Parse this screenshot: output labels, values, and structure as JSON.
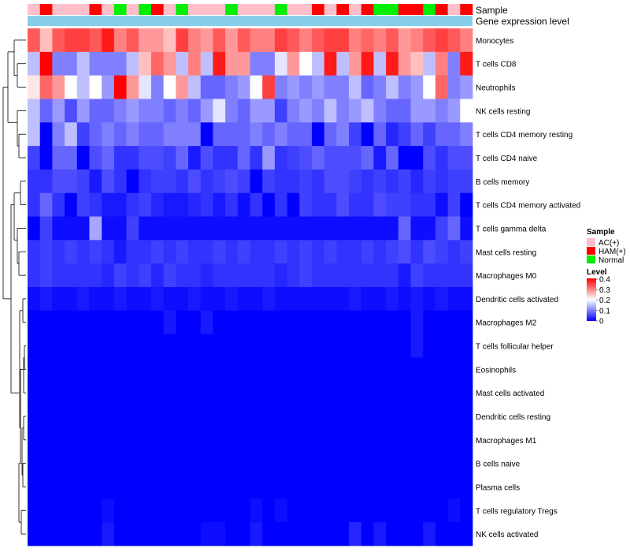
{
  "chart_data": {
    "type": "heatmap",
    "annotations": {
      "sample_label": "Sample",
      "expression_label": "Gene expression level",
      "sample_track": [
        "AC(+)",
        "HAM(+)",
        "AC(+)",
        "AC(+)",
        "AC(+)",
        "HAM(+)",
        "AC(+)",
        "Normal",
        "AC(+)",
        "Normal",
        "HAM(+)",
        "AC(+)",
        "Normal",
        "AC(+)",
        "AC(+)",
        "AC(+)",
        "Normal",
        "AC(+)",
        "AC(+)",
        "AC(+)",
        "Normal",
        "AC(+)",
        "AC(+)",
        "HAM(+)",
        "AC(+)",
        "HAM(+)",
        "AC(+)",
        "HAM(+)",
        "Normal",
        "Normal",
        "HAM(+)",
        "HAM(+)",
        "Normal",
        "HAM(+)",
        "AC(+)",
        "HAM(+)"
      ]
    },
    "rows": [
      "Monocytes",
      "T cells CD8",
      "Neutrophils",
      "NK cells resting",
      "T cells CD4 memory resting",
      "T cells CD4 naive",
      "B cells memory",
      "T cells CD4 memory activated",
      "T cells gamma delta",
      "Mast cells resting",
      "Macrophages M0",
      "Dendritic cells activated",
      "Macrophages M2",
      "T cells follicular helper",
      "Eosinophils",
      "Mast cells activated",
      "Dendritic cells resting",
      "Macrophages M1",
      "B cells naive",
      "Plasma cells",
      "T cells regulatory  Tregs",
      "NK cells activated"
    ],
    "values": [
      [
        0.33,
        0.25,
        0.33,
        0.35,
        0.35,
        0.33,
        0.38,
        0.3,
        0.33,
        0.28,
        0.28,
        0.25,
        0.35,
        0.3,
        0.28,
        0.33,
        0.28,
        0.33,
        0.3,
        0.3,
        0.35,
        0.33,
        0.3,
        0.33,
        0.35,
        0.35,
        0.3,
        0.32,
        0.3,
        0.33,
        0.28,
        0.3,
        0.33,
        0.35,
        0.33,
        0.3
      ],
      [
        0.15,
        0.4,
        0.1,
        0.1,
        0.15,
        0.1,
        0.1,
        0.1,
        0.15,
        0.25,
        0.32,
        0.28,
        0.15,
        0.3,
        0.15,
        0.38,
        0.28,
        0.28,
        0.1,
        0.1,
        0.18,
        0.28,
        0.2,
        0.15,
        0.38,
        0.15,
        0.28,
        0.38,
        0.15,
        0.38,
        0.28,
        0.25,
        0.15,
        0.3,
        0.1,
        0.38
      ],
      [
        0.22,
        0.32,
        0.28,
        0.2,
        0.15,
        0.2,
        0.12,
        0.4,
        0.28,
        0.18,
        0.1,
        0.2,
        0.28,
        0.15,
        0.08,
        0.08,
        0.1,
        0.12,
        0.2,
        0.35,
        0.1,
        0.12,
        0.1,
        0.12,
        0.1,
        0.1,
        0.15,
        0.08,
        0.1,
        0.15,
        0.1,
        0.12,
        0.2,
        0.32,
        0.1,
        0.12
      ],
      [
        0.15,
        0.08,
        0.12,
        0.06,
        0.12,
        0.08,
        0.08,
        0.1,
        0.12,
        0.1,
        0.1,
        0.08,
        0.1,
        0.08,
        0.12,
        0.18,
        0.1,
        0.08,
        0.12,
        0.12,
        0.05,
        0.1,
        0.12,
        0.1,
        0.15,
        0.1,
        0.12,
        0.15,
        0.1,
        0.08,
        0.08,
        0.12,
        0.12,
        0.1,
        0.12,
        0.2
      ],
      [
        0.15,
        0.0,
        0.1,
        0.15,
        0.05,
        0.08,
        0.1,
        0.08,
        0.1,
        0.08,
        0.08,
        0.1,
        0.1,
        0.1,
        0.0,
        0.08,
        0.08,
        0.08,
        0.1,
        0.08,
        0.1,
        0.08,
        0.08,
        0.0,
        0.08,
        0.1,
        0.05,
        0.0,
        0.08,
        0.03,
        0.05,
        0.08,
        0.05,
        0.08,
        0.08,
        0.1
      ],
      [
        0.05,
        0.0,
        0.08,
        0.08,
        0.0,
        0.06,
        0.08,
        0.04,
        0.04,
        0.06,
        0.06,
        0.05,
        0.08,
        0.02,
        0.06,
        0.04,
        0.04,
        0.08,
        0.04,
        0.12,
        0.04,
        0.05,
        0.06,
        0.08,
        0.06,
        0.06,
        0.06,
        0.08,
        0.02,
        0.08,
        0.0,
        0.0,
        0.06,
        0.04,
        0.06,
        0.06
      ],
      [
        0.04,
        0.04,
        0.06,
        0.06,
        0.05,
        0.02,
        0.06,
        0.04,
        0.0,
        0.04,
        0.05,
        0.05,
        0.04,
        0.06,
        0.04,
        0.05,
        0.06,
        0.05,
        0.0,
        0.05,
        0.04,
        0.04,
        0.05,
        0.04,
        0.06,
        0.06,
        0.05,
        0.04,
        0.05,
        0.04,
        0.05,
        0.03,
        0.05,
        0.04,
        0.05,
        0.05
      ],
      [
        0.04,
        0.08,
        0.04,
        0.0,
        0.05,
        0.04,
        0.02,
        0.02,
        0.04,
        0.05,
        0.03,
        0.02,
        0.02,
        0.03,
        0.04,
        0.02,
        0.04,
        0.01,
        0.04,
        0.0,
        0.04,
        0.0,
        0.05,
        0.04,
        0.04,
        0.06,
        0.04,
        0.04,
        0.06,
        0.05,
        0.05,
        0.04,
        0.04,
        0.01,
        0.05,
        0.0
      ],
      [
        0.0,
        0.05,
        0.01,
        0.01,
        0.01,
        0.13,
        0.01,
        0.01,
        0.05,
        0.01,
        0.01,
        0.01,
        0.01,
        0.01,
        0.01,
        0.01,
        0.01,
        0.01,
        0.01,
        0.01,
        0.01,
        0.01,
        0.01,
        0.01,
        0.01,
        0.01,
        0.01,
        0.01,
        0.01,
        0.01,
        0.08,
        0.01,
        0.01,
        0.05,
        0.08,
        0.01
      ],
      [
        0.04,
        0.05,
        0.04,
        0.05,
        0.04,
        0.05,
        0.04,
        0.02,
        0.04,
        0.04,
        0.05,
        0.04,
        0.05,
        0.04,
        0.04,
        0.05,
        0.04,
        0.05,
        0.04,
        0.04,
        0.05,
        0.04,
        0.05,
        0.04,
        0.05,
        0.04,
        0.04,
        0.05,
        0.04,
        0.05,
        0.06,
        0.04,
        0.06,
        0.05,
        0.04,
        0.05
      ],
      [
        0.04,
        0.05,
        0.04,
        0.04,
        0.04,
        0.04,
        0.03,
        0.05,
        0.04,
        0.05,
        0.03,
        0.05,
        0.04,
        0.04,
        0.03,
        0.04,
        0.04,
        0.04,
        0.04,
        0.04,
        0.03,
        0.04,
        0.05,
        0.04,
        0.04,
        0.04,
        0.04,
        0.04,
        0.04,
        0.04,
        0.02,
        0.05,
        0.04,
        0.04,
        0.04,
        0.04
      ],
      [
        0.01,
        0.02,
        0.01,
        0.01,
        0.02,
        0.01,
        0.01,
        0.02,
        0.01,
        0.01,
        0.02,
        0.01,
        0.01,
        0.02,
        0.01,
        0.01,
        0.02,
        0.01,
        0.01,
        0.02,
        0.01,
        0.01,
        0.01,
        0.01,
        0.01,
        0.01,
        0.02,
        0.01,
        0.01,
        0.02,
        0.01,
        0.02,
        0.01,
        0.02,
        0.01,
        0.01
      ],
      [
        0.0,
        0.0,
        0.0,
        0.0,
        0.0,
        0.0,
        0.0,
        0.0,
        0.0,
        0.0,
        0.0,
        0.02,
        0.0,
        0.0,
        0.02,
        0.0,
        0.0,
        0.0,
        0.0,
        0.0,
        0.0,
        0.0,
        0.0,
        0.0,
        0.0,
        0.0,
        0.0,
        0.0,
        0.0,
        0.0,
        0.0,
        0.02,
        0.0,
        0.0,
        0.0,
        0.0
      ],
      [
        0.0,
        0.0,
        0.0,
        0.0,
        0.0,
        0.0,
        0.0,
        0.0,
        0.0,
        0.0,
        0.0,
        0.0,
        0.0,
        0.0,
        0.0,
        0.0,
        0.0,
        0.0,
        0.0,
        0.0,
        0.0,
        0.0,
        0.0,
        0.0,
        0.0,
        0.0,
        0.0,
        0.0,
        0.0,
        0.0,
        0.0,
        0.02,
        0.0,
        0.0,
        0.0,
        0.0
      ],
      [
        0.0,
        0.0,
        0.0,
        0.0,
        0.0,
        0.0,
        0.0,
        0.0,
        0.0,
        0.0,
        0.0,
        0.0,
        0.0,
        0.0,
        0.0,
        0.0,
        0.0,
        0.0,
        0.0,
        0.0,
        0.0,
        0.0,
        0.0,
        0.0,
        0.0,
        0.0,
        0.0,
        0.0,
        0.0,
        0.0,
        0.0,
        0.0,
        0.0,
        0.0,
        0.0,
        0.0
      ],
      [
        0.0,
        0.0,
        0.0,
        0.0,
        0.0,
        0.0,
        0.0,
        0.0,
        0.0,
        0.0,
        0.0,
        0.0,
        0.0,
        0.0,
        0.0,
        0.0,
        0.0,
        0.0,
        0.0,
        0.0,
        0.0,
        0.0,
        0.0,
        0.0,
        0.0,
        0.0,
        0.0,
        0.0,
        0.0,
        0.0,
        0.0,
        0.0,
        0.0,
        0.0,
        0.0,
        0.0
      ],
      [
        0.0,
        0.0,
        0.0,
        0.0,
        0.0,
        0.0,
        0.0,
        0.0,
        0.0,
        0.0,
        0.0,
        0.0,
        0.0,
        0.0,
        0.0,
        0.0,
        0.0,
        0.0,
        0.0,
        0.0,
        0.0,
        0.0,
        0.0,
        0.0,
        0.0,
        0.0,
        0.0,
        0.0,
        0.0,
        0.0,
        0.0,
        0.0,
        0.0,
        0.0,
        0.0,
        0.0
      ],
      [
        0.0,
        0.0,
        0.0,
        0.0,
        0.0,
        0.0,
        0.0,
        0.0,
        0.0,
        0.0,
        0.0,
        0.0,
        0.0,
        0.0,
        0.0,
        0.0,
        0.0,
        0.0,
        0.0,
        0.0,
        0.0,
        0.0,
        0.0,
        0.0,
        0.0,
        0.0,
        0.0,
        0.0,
        0.0,
        0.0,
        0.0,
        0.0,
        0.0,
        0.0,
        0.0,
        0.0
      ],
      [
        0.0,
        0.0,
        0.0,
        0.0,
        0.0,
        0.0,
        0.0,
        0.0,
        0.0,
        0.0,
        0.0,
        0.0,
        0.0,
        0.0,
        0.0,
        0.0,
        0.0,
        0.0,
        0.0,
        0.0,
        0.0,
        0.0,
        0.0,
        0.0,
        0.0,
        0.0,
        0.0,
        0.0,
        0.0,
        0.0,
        0.0,
        0.0,
        0.0,
        0.0,
        0.0,
        0.0
      ],
      [
        0.0,
        0.0,
        0.0,
        0.0,
        0.0,
        0.0,
        0.0,
        0.0,
        0.0,
        0.0,
        0.0,
        0.0,
        0.0,
        0.0,
        0.0,
        0.0,
        0.0,
        0.0,
        0.0,
        0.0,
        0.0,
        0.0,
        0.0,
        0.0,
        0.0,
        0.0,
        0.0,
        0.0,
        0.0,
        0.0,
        0.0,
        0.0,
        0.0,
        0.0,
        0.0,
        0.0
      ],
      [
        0.0,
        0.0,
        0.0,
        0.0,
        0.0,
        0.0,
        0.01,
        0.0,
        0.0,
        0.0,
        0.0,
        0.0,
        0.0,
        0.0,
        0.0,
        0.0,
        0.0,
        0.0,
        0.01,
        0.0,
        0.01,
        0.0,
        0.0,
        0.0,
        0.0,
        0.0,
        0.0,
        0.0,
        0.0,
        0.0,
        0.0,
        0.0,
        0.0,
        0.0,
        0.01,
        0.0
      ],
      [
        0.0,
        0.0,
        0.0,
        0.0,
        0.0,
        0.0,
        0.02,
        0.0,
        0.0,
        0.0,
        0.0,
        0.0,
        0.0,
        0.0,
        0.01,
        0.01,
        0.0,
        0.0,
        0.02,
        0.0,
        0.0,
        0.0,
        0.0,
        0.0,
        0.0,
        0.0,
        0.03,
        0.0,
        0.02,
        0.0,
        0.0,
        0.0,
        0.02,
        0.0,
        0.0,
        0.0
      ]
    ],
    "legend": {
      "sample_title": "Sample",
      "sample_entries": [
        {
          "name": "AC(+)",
          "color": "#FFC0CB"
        },
        {
          "name": "HAM(+)",
          "color": "#FF0000"
        },
        {
          "name": "Normal",
          "color": "#00EE00"
        }
      ],
      "level_title": "Level",
      "level_ticks": [
        "0.4",
        "0.3",
        "0.2",
        "0.1",
        "0"
      ],
      "level_range": [
        0,
        0.4
      ]
    },
    "colors": {
      "low": "#0000FF",
      "mid": "#FFFFFF",
      "high": "#FF0000",
      "expression_bar": "#87CEEB"
    }
  }
}
